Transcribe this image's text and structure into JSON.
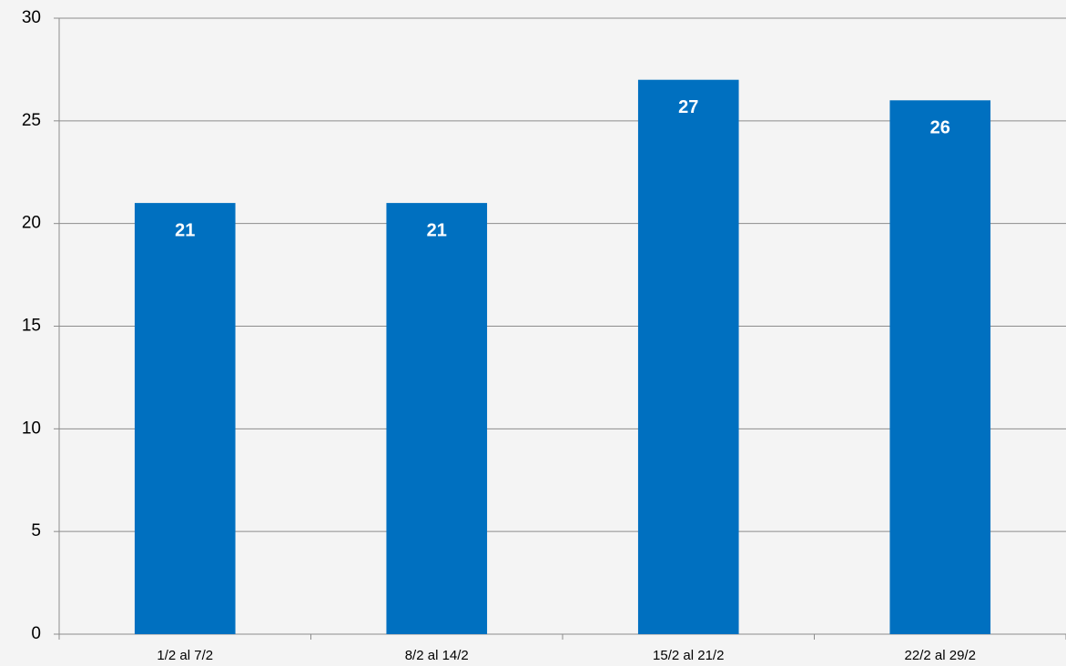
{
  "chart_data": {
    "type": "bar",
    "categories": [
      "1/2 al 7/2",
      "8/2 al 14/2",
      "15/2 al 21/2",
      "22/2 al 29/2"
    ],
    "values": [
      21,
      21,
      27,
      26
    ],
    "color": "#0070c0",
    "ylim": [
      0,
      30
    ],
    "yticks": [
      0,
      5,
      10,
      15,
      20,
      25,
      30
    ],
    "grid": true
  }
}
